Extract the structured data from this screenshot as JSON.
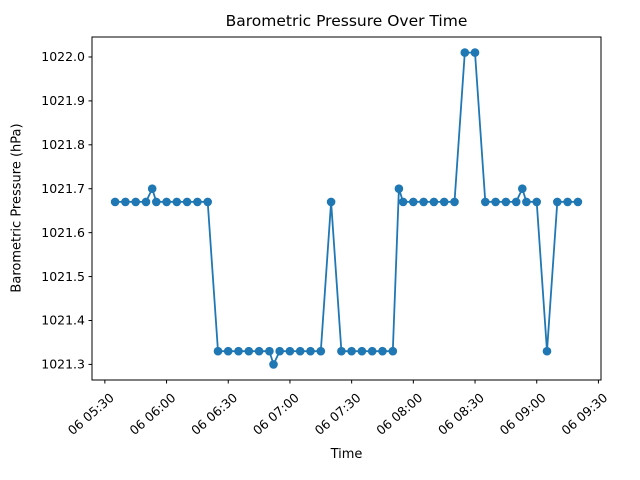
{
  "figure": {
    "background": "#ffffff",
    "text_color": "#000000"
  },
  "chart_data": {
    "type": "line",
    "title": "Barometric Pressure Over Time",
    "xlabel": "Time",
    "ylabel": "Barometric Pressure (hPa)",
    "line_color": "#1f77b4",
    "marker": "circle",
    "grid": false,
    "legend_position": "none",
    "axis_margin": 0.05,
    "x_tick_labels": [
      "06 05:30",
      "06 06:00",
      "06 06:30",
      "06 07:00",
      "06 07:30",
      "06 08:00",
      "06 08:30",
      "06 09:00",
      "06 09:30"
    ],
    "x_tick_rotation_deg": 41,
    "y_tick_values": [
      1021.3,
      1021.4,
      1021.5,
      1021.6,
      1021.7,
      1021.8,
      1021.9,
      1022.0
    ],
    "ylim": [
      1021.2645,
      1022.0455
    ],
    "points": [
      [
        "06 05:35",
        1021.67
      ],
      [
        "06 05:40",
        1021.67
      ],
      [
        "06 05:45",
        1021.67
      ],
      [
        "06 05:50",
        1021.67
      ],
      [
        "06 05:53",
        1021.7
      ],
      [
        "06 05:55",
        1021.67
      ],
      [
        "06 06:00",
        1021.67
      ],
      [
        "06 06:05",
        1021.67
      ],
      [
        "06 06:10",
        1021.67
      ],
      [
        "06 06:15",
        1021.67
      ],
      [
        "06 06:20",
        1021.67
      ],
      [
        "06 06:25",
        1021.33
      ],
      [
        "06 06:30",
        1021.33
      ],
      [
        "06 06:35",
        1021.33
      ],
      [
        "06 06:40",
        1021.33
      ],
      [
        "06 06:45",
        1021.33
      ],
      [
        "06 06:50",
        1021.33
      ],
      [
        "06 06:52",
        1021.3
      ],
      [
        "06 06:55",
        1021.33
      ],
      [
        "06 07:00",
        1021.33
      ],
      [
        "06 07:05",
        1021.33
      ],
      [
        "06 07:10",
        1021.33
      ],
      [
        "06 07:15",
        1021.33
      ],
      [
        "06 07:20",
        1021.67
      ],
      [
        "06 07:25",
        1021.33
      ],
      [
        "06 07:30",
        1021.33
      ],
      [
        "06 07:35",
        1021.33
      ],
      [
        "06 07:40",
        1021.33
      ],
      [
        "06 07:45",
        1021.33
      ],
      [
        "06 07:50",
        1021.33
      ],
      [
        "06 07:53",
        1021.7
      ],
      [
        "06 07:55",
        1021.67
      ],
      [
        "06 08:00",
        1021.67
      ],
      [
        "06 08:05",
        1021.67
      ],
      [
        "06 08:10",
        1021.67
      ],
      [
        "06 08:15",
        1021.67
      ],
      [
        "06 08:20",
        1021.67
      ],
      [
        "06 08:25",
        1022.01
      ],
      [
        "06 08:30",
        1022.01
      ],
      [
        "06 08:35",
        1021.67
      ],
      [
        "06 08:40",
        1021.67
      ],
      [
        "06 08:45",
        1021.67
      ],
      [
        "06 08:50",
        1021.67
      ],
      [
        "06 08:53",
        1021.7
      ],
      [
        "06 08:55",
        1021.67
      ],
      [
        "06 09:00",
        1021.67
      ],
      [
        "06 09:05",
        1021.33
      ],
      [
        "06 09:10",
        1021.67
      ],
      [
        "06 09:15",
        1021.67
      ],
      [
        "06 09:20",
        1021.67
      ]
    ]
  }
}
